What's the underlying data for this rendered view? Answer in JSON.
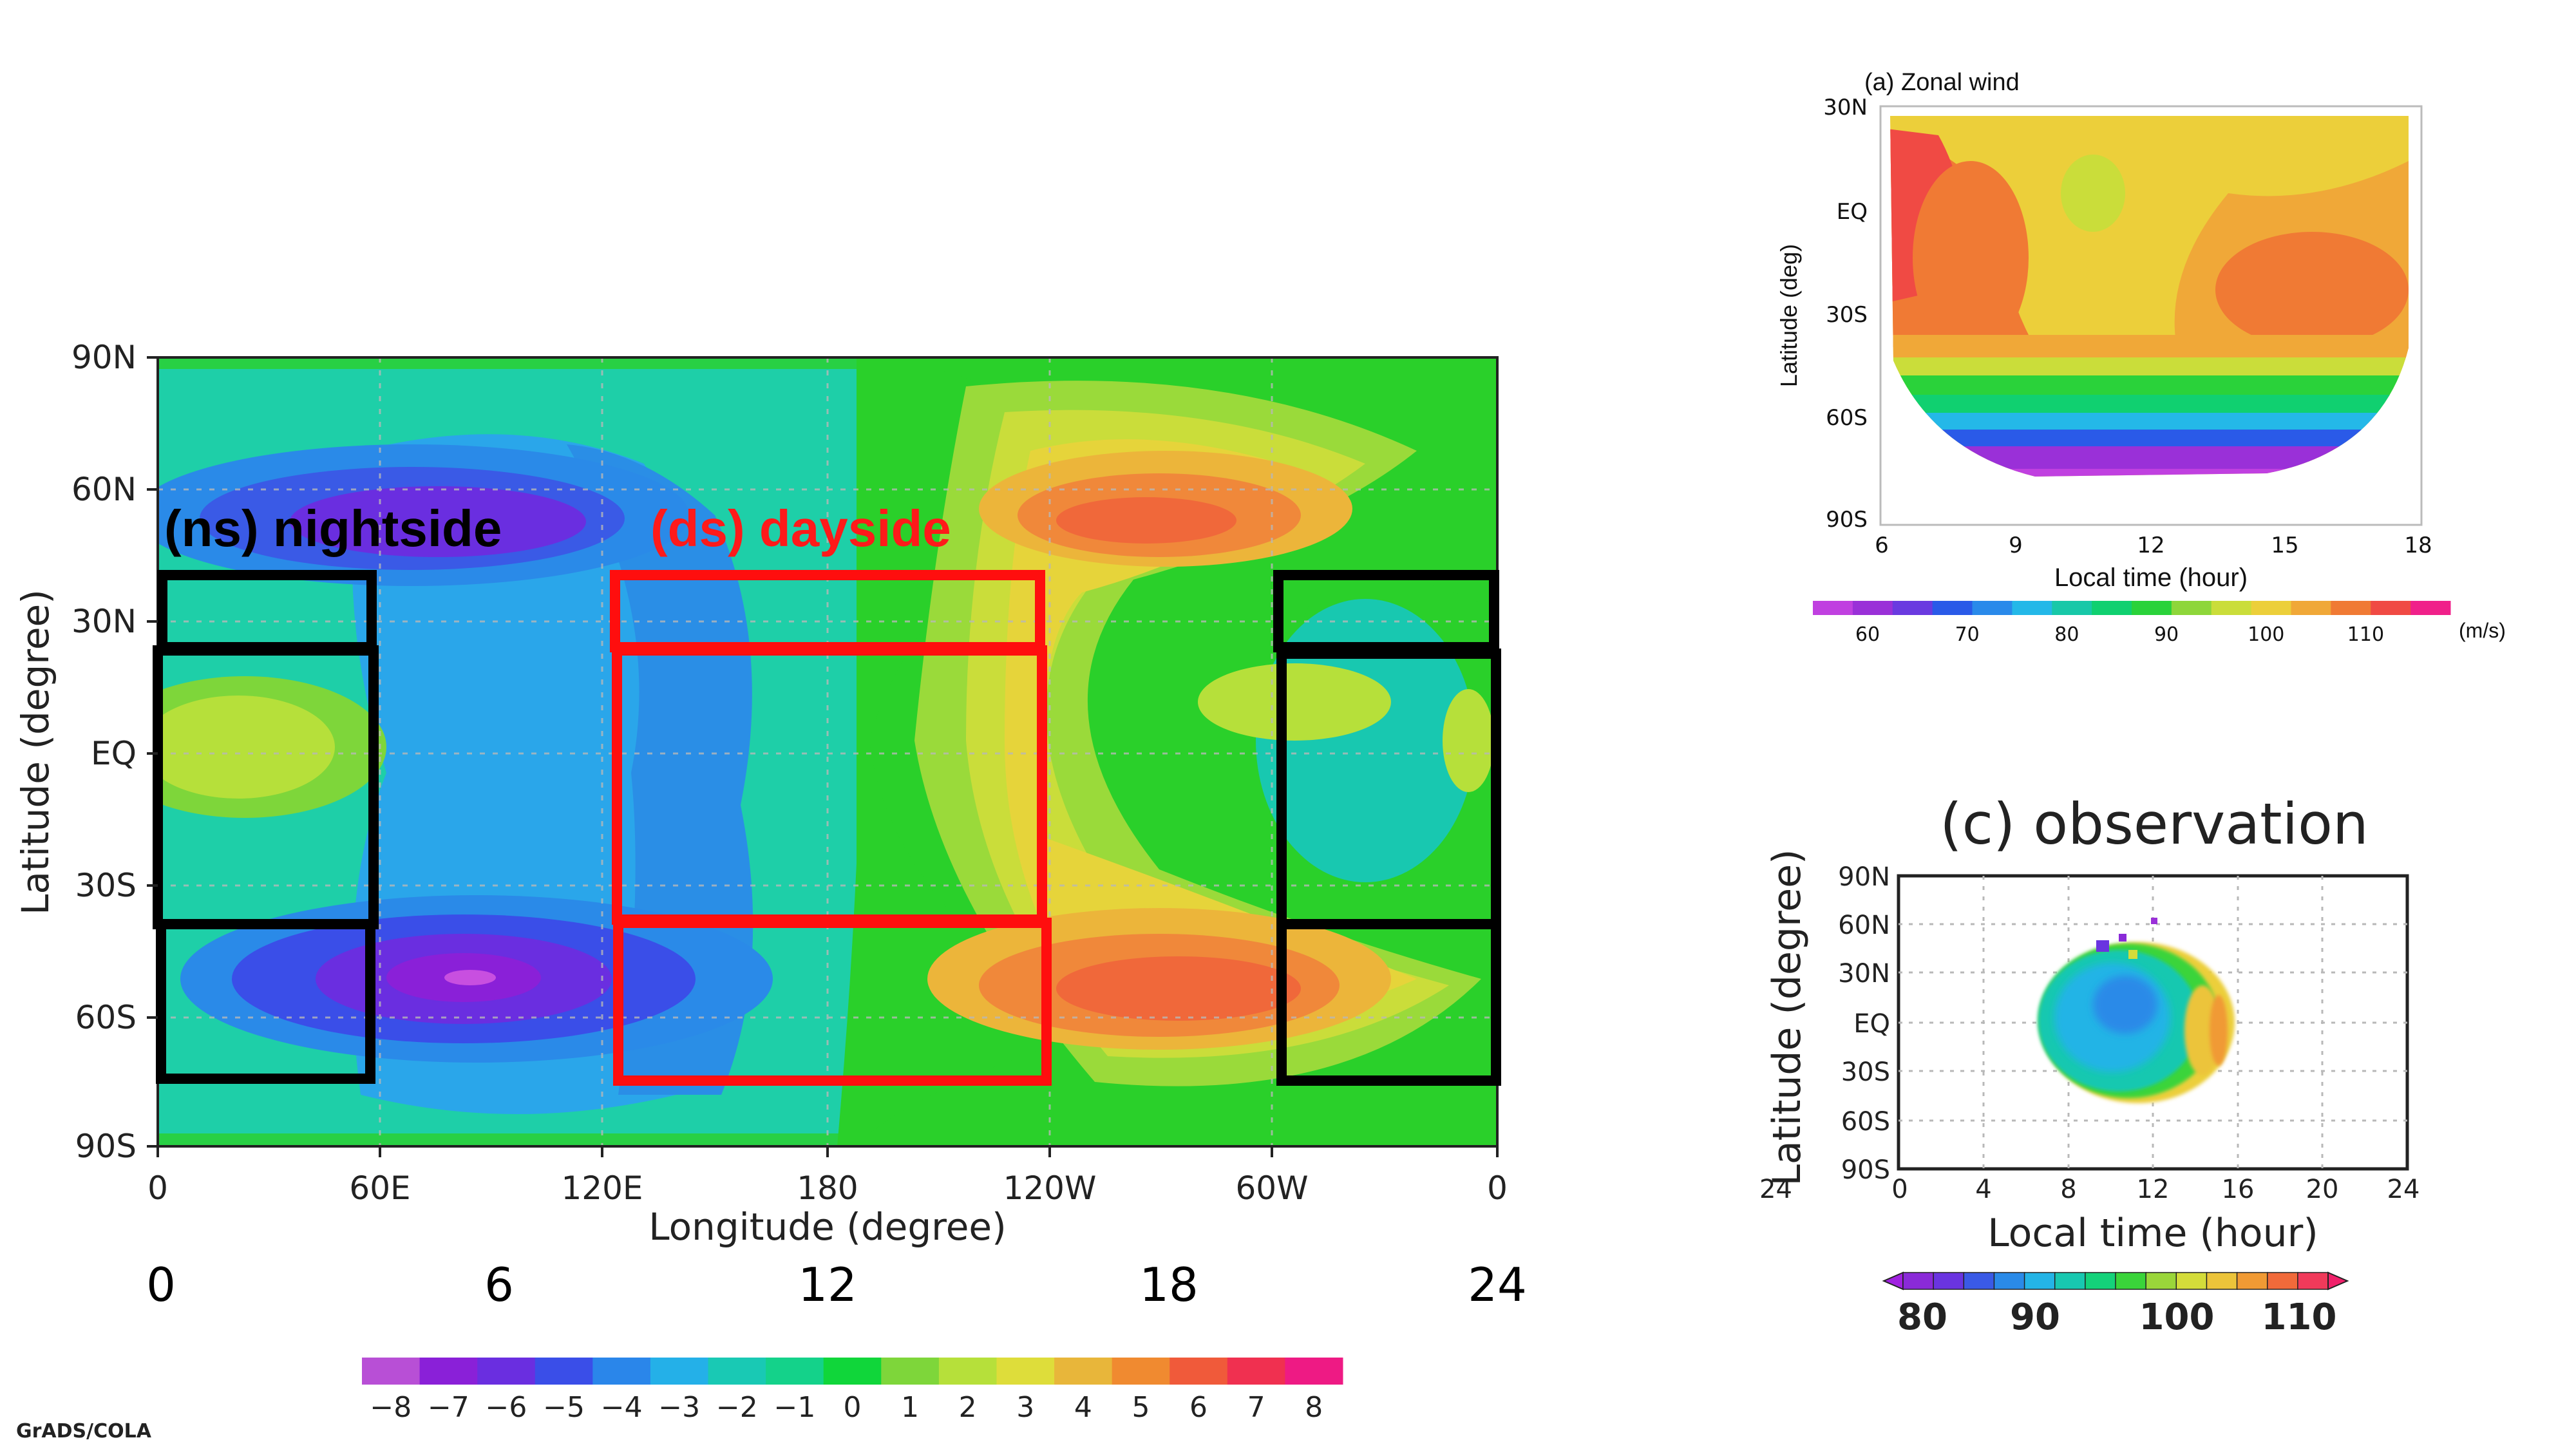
{
  "charts": {
    "main": {
      "type": "heatmap",
      "ylabel": "Latitude (degree)",
      "xlabel": "Longitude (degree)",
      "y_ticks": [
        "90N",
        "60N",
        "30N",
        "EQ",
        "30S",
        "60S",
        "90S"
      ],
      "x_ticks": [
        "0",
        "60E",
        "120E",
        "180",
        "120W",
        "60W",
        "0"
      ],
      "local_time_ticks": [
        "0",
        "6",
        "12",
        "18",
        "24"
      ],
      "ns_label": "(ns) nightside",
      "ds_label": "(ds) dayside",
      "colorbar_labels": [
        "−8",
        "−7",
        "−6",
        "−5",
        "−4",
        "−3",
        "−2",
        "−1",
        "0",
        "1",
        "2",
        "3",
        "4",
        "5",
        "6",
        "7",
        "8"
      ],
      "colorbar_colors": [
        "#b84fd6",
        "#8a20d8",
        "#6a2ee0",
        "#3a4ee8",
        "#2a86ea",
        "#24b0e8",
        "#19c9b4",
        "#14d28a",
        "#10d63a",
        "#7ed63a",
        "#b6e03a",
        "#dedd3a",
        "#e8b63a",
        "#f08a30",
        "#f05a3a",
        "#f03050",
        "#ee1a84"
      ],
      "credit": "GrADS/COLA"
    },
    "zonal": {
      "title": "(a) Zonal wind",
      "ylabel": "Latitude (deg)",
      "xlabel": "Local time (hour)",
      "y_ticks": [
        "30N",
        "EQ",
        "30S",
        "60S",
        "90S"
      ],
      "x_ticks": [
        "6",
        "9",
        "12",
        "15",
        "18"
      ],
      "colorbar_labels": [
        "60",
        "70",
        "80",
        "90",
        "100",
        "110"
      ],
      "colorbar_colors": [
        "#c040e0",
        "#9a30d8",
        "#6a3ae0",
        "#2a5ae8",
        "#2a8aea",
        "#24b8e8",
        "#18c8a8",
        "#10d070",
        "#2ad23a",
        "#8ed63a",
        "#cadd3a",
        "#eccf3a",
        "#f0a838",
        "#f07a34",
        "#f04a44",
        "#f0208a"
      ],
      "unit": "(m/s)"
    },
    "observation": {
      "title": "(c) observation",
      "ylabel": "Latitude (degree)",
      "xlabel": "Local time (hour)",
      "y_ticks": [
        "90N",
        "60N",
        "30N",
        "EQ",
        "30S",
        "60S",
        "90S"
      ],
      "x_ticks": [
        "0",
        "4",
        "8",
        "12",
        "16",
        "20",
        "24"
      ],
      "left_edge_tick": "24",
      "colorbar_labels": [
        "80",
        "90",
        "100",
        "110"
      ],
      "colorbar_colors": [
        "#8a2ad8",
        "#6a34e0",
        "#3a5ae6",
        "#2a8ae8",
        "#24b4e6",
        "#18c8b0",
        "#14d27a",
        "#3ad43a",
        "#9ad63a",
        "#d4dc3a",
        "#ecc43a",
        "#f09a34",
        "#f06a3a",
        "#f03a5a"
      ]
    }
  }
}
